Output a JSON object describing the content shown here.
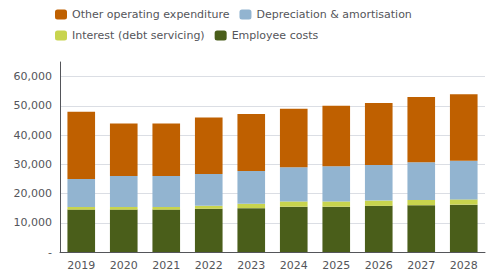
{
  "chart_data": {
    "type": "bar",
    "stacked": true,
    "categories": [
      "2019",
      "2020",
      "2021",
      "2022",
      "2023",
      "2024",
      "2025",
      "2026",
      "2027",
      "2028"
    ],
    "series": [
      {
        "name": "Employee costs",
        "color": "#4a5e1a",
        "values": [
          14500,
          14500,
          14500,
          14800,
          15000,
          15500,
          15500,
          15800,
          16000,
          16200
        ]
      },
      {
        "name": "Interest (debt servicing)",
        "color": "#c8d44e",
        "values": [
          900,
          900,
          900,
          1000,
          1500,
          1800,
          1800,
          1800,
          1800,
          1800
        ]
      },
      {
        "name": "Depreciation & amortisation",
        "color": "#92b4d0",
        "values": [
          9600,
          10600,
          10600,
          10900,
          11200,
          11700,
          12000,
          12200,
          12900,
          13200
        ]
      },
      {
        "name": "Other operating expenditure",
        "color": "#bf6000",
        "values": [
          23000,
          18000,
          18000,
          19300,
          19500,
          20000,
          20700,
          21200,
          22300,
          22800
        ]
      }
    ],
    "ylim": [
      0,
      65000
    ],
    "yticks": [
      {
        "value": 0,
        "label": "-"
      },
      {
        "value": 10000,
        "label": "10,000"
      },
      {
        "value": 20000,
        "label": "20,000"
      },
      {
        "value": 30000,
        "label": "30,000"
      },
      {
        "value": 40000,
        "label": "40,000"
      },
      {
        "value": 50000,
        "label": "50,000"
      },
      {
        "value": 60000,
        "label": "60,000"
      }
    ],
    "grid": true,
    "legend": "upper left"
  }
}
